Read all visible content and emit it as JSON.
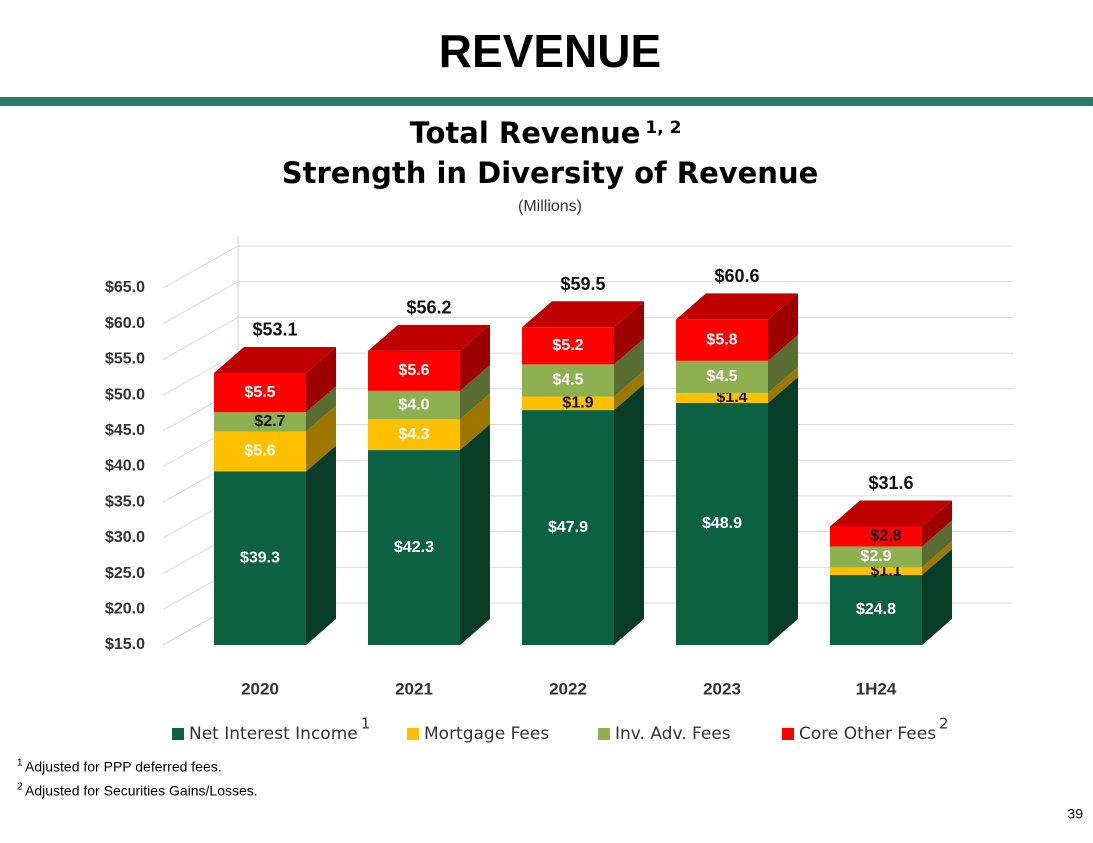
{
  "header": {
    "title": "REVENUE"
  },
  "chart_data": {
    "type": "stacked-bar-3d",
    "title": "Total Revenue",
    "title_superscript": "1, 2",
    "subtitle": "Strength in Diversity of Revenue",
    "unit_label": "(Millions)",
    "categories": [
      "2020",
      "2021",
      "2022",
      "2023",
      "1H24"
    ],
    "series": [
      {
        "name": "Net Interest Income",
        "superscript": "1",
        "color": "#0b6142",
        "values": [
          39.3,
          42.3,
          47.9,
          48.9,
          24.8
        ],
        "value_labels": [
          "$39.3",
          "$42.3",
          "$47.9",
          "$48.9",
          "$24.8"
        ]
      },
      {
        "name": "Mortgage Fees",
        "color": "#ffc000",
        "values": [
          5.6,
          4.3,
          1.9,
          1.4,
          1.1
        ],
        "value_labels": [
          "$5.6",
          "$4.3",
          "$1.9",
          "$1.4",
          "$1.1"
        ]
      },
      {
        "name": "Inv. Adv. Fees",
        "color": "#8fb050",
        "values": [
          2.7,
          4.0,
          4.5,
          4.5,
          2.9
        ],
        "value_labels": [
          "$2.7",
          "$4.0",
          "$4.5",
          "$4.5",
          "$2.9"
        ]
      },
      {
        "name": "Core Other Fees",
        "superscript": "2",
        "color": "#ff0000",
        "values": [
          5.5,
          5.6,
          5.2,
          5.8,
          2.8
        ],
        "value_labels": [
          "$5.5",
          "$5.6",
          "$5.2",
          "$5.8",
          "$2.8"
        ]
      }
    ],
    "totals": {
      "values": [
        53.1,
        56.2,
        59.5,
        60.6,
        31.6
      ],
      "value_labels": [
        "$53.1",
        "$56.2",
        "$59.5",
        "$60.6",
        "$31.6"
      ]
    },
    "ylim": [
      15,
      65
    ],
    "yticks": [
      {
        "value": 15,
        "label": "$15.0"
      },
      {
        "value": 20,
        "label": "$20.0"
      },
      {
        "value": 25,
        "label": "$25.0"
      },
      {
        "value": 30,
        "label": "$30.0"
      },
      {
        "value": 35,
        "label": "$35.0"
      },
      {
        "value": 40,
        "label": "$40.0"
      },
      {
        "value": 45,
        "label": "$45.0"
      },
      {
        "value": 50,
        "label": "$50.0"
      },
      {
        "value": 55,
        "label": "$55.0"
      },
      {
        "value": 60,
        "label": "$60.0"
      },
      {
        "value": 65,
        "label": "$65.0"
      }
    ],
    "grid": true,
    "legend": "bottom"
  },
  "footnotes": [
    {
      "marker": "1",
      "text": "Adjusted for PPP deferred fees."
    },
    {
      "marker": "2",
      "text": "Adjusted for Securities Gains/Losses."
    }
  ],
  "page_number": "39"
}
